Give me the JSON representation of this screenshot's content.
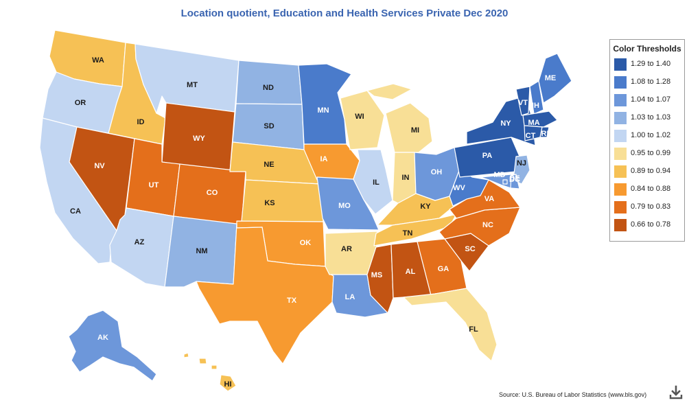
{
  "title": "Location quotient, Education and Health Services Private Dec 2020",
  "legend": {
    "title": "Color Thresholds",
    "items": [
      {
        "label": "1.29 to 1.40",
        "color": "#2b5aa8"
      },
      {
        "label": "1.08 to 1.28",
        "color": "#4a7bcb"
      },
      {
        "label": "1.04 to 1.07",
        "color": "#6d97da"
      },
      {
        "label": "1.03 to 1.03",
        "color": "#91b3e3"
      },
      {
        "label": "1.00 to 1.02",
        "color": "#c2d6f2"
      },
      {
        "label": "0.95 to 0.99",
        "color": "#f8df96"
      },
      {
        "label": "0.89 to 0.94",
        "color": "#f6c155"
      },
      {
        "label": "0.84 to 0.88",
        "color": "#f79a30"
      },
      {
        "label": "0.79 to 0.83",
        "color": "#e46f1b"
      },
      {
        "label": "0.66 to 0.78",
        "color": "#c25413"
      }
    ]
  },
  "states": [
    {
      "code": "WA",
      "tier": 6
    },
    {
      "code": "OR",
      "tier": 4
    },
    {
      "code": "CA",
      "tier": 4
    },
    {
      "code": "ID",
      "tier": 6
    },
    {
      "code": "NV",
      "tier": 9
    },
    {
      "code": "MT",
      "tier": 4
    },
    {
      "code": "WY",
      "tier": 9
    },
    {
      "code": "UT",
      "tier": 8
    },
    {
      "code": "AZ",
      "tier": 4
    },
    {
      "code": "CO",
      "tier": 8
    },
    {
      "code": "NM",
      "tier": 3
    },
    {
      "code": "ND",
      "tier": 3
    },
    {
      "code": "SD",
      "tier": 3
    },
    {
      "code": "NE",
      "tier": 6
    },
    {
      "code": "KS",
      "tier": 6
    },
    {
      "code": "OK",
      "tier": 7
    },
    {
      "code": "TX",
      "tier": 7
    },
    {
      "code": "MN",
      "tier": 1
    },
    {
      "code": "IA",
      "tier": 7
    },
    {
      "code": "MO",
      "tier": 2
    },
    {
      "code": "AR",
      "tier": 5
    },
    {
      "code": "LA",
      "tier": 2
    },
    {
      "code": "WI",
      "tier": 5
    },
    {
      "code": "IL",
      "tier": 4
    },
    {
      "code": "MI",
      "tier": 5
    },
    {
      "code": "IN",
      "tier": 5
    },
    {
      "code": "OH",
      "tier": 2
    },
    {
      "code": "KY",
      "tier": 6
    },
    {
      "code": "TN",
      "tier": 6
    },
    {
      "code": "MS",
      "tier": 9
    },
    {
      "code": "AL",
      "tier": 9
    },
    {
      "code": "GA",
      "tier": 8
    },
    {
      "code": "FL",
      "tier": 5
    },
    {
      "code": "SC",
      "tier": 9
    },
    {
      "code": "NC",
      "tier": 8
    },
    {
      "code": "VA",
      "tier": 8
    },
    {
      "code": "WV",
      "tier": 1
    },
    {
      "code": "PA",
      "tier": 0
    },
    {
      "code": "NY",
      "tier": 0
    },
    {
      "code": "VT",
      "tier": 0
    },
    {
      "code": "NH",
      "tier": 1
    },
    {
      "code": "ME",
      "tier": 1
    },
    {
      "code": "MA",
      "tier": 0
    },
    {
      "code": "CT",
      "tier": 0
    },
    {
      "code": "RI",
      "tier": 0
    },
    {
      "code": "NJ",
      "tier": 3
    },
    {
      "code": "DE",
      "tier": 2
    },
    {
      "code": "MD",
      "tier": 2
    },
    {
      "code": "DC",
      "tier": 2
    },
    {
      "code": "AK",
      "tier": 2
    },
    {
      "code": "HI",
      "tier": 6
    }
  ],
  "source": "Source: U.S. Bureau of Labor Statistics (www.bls.gov)"
}
